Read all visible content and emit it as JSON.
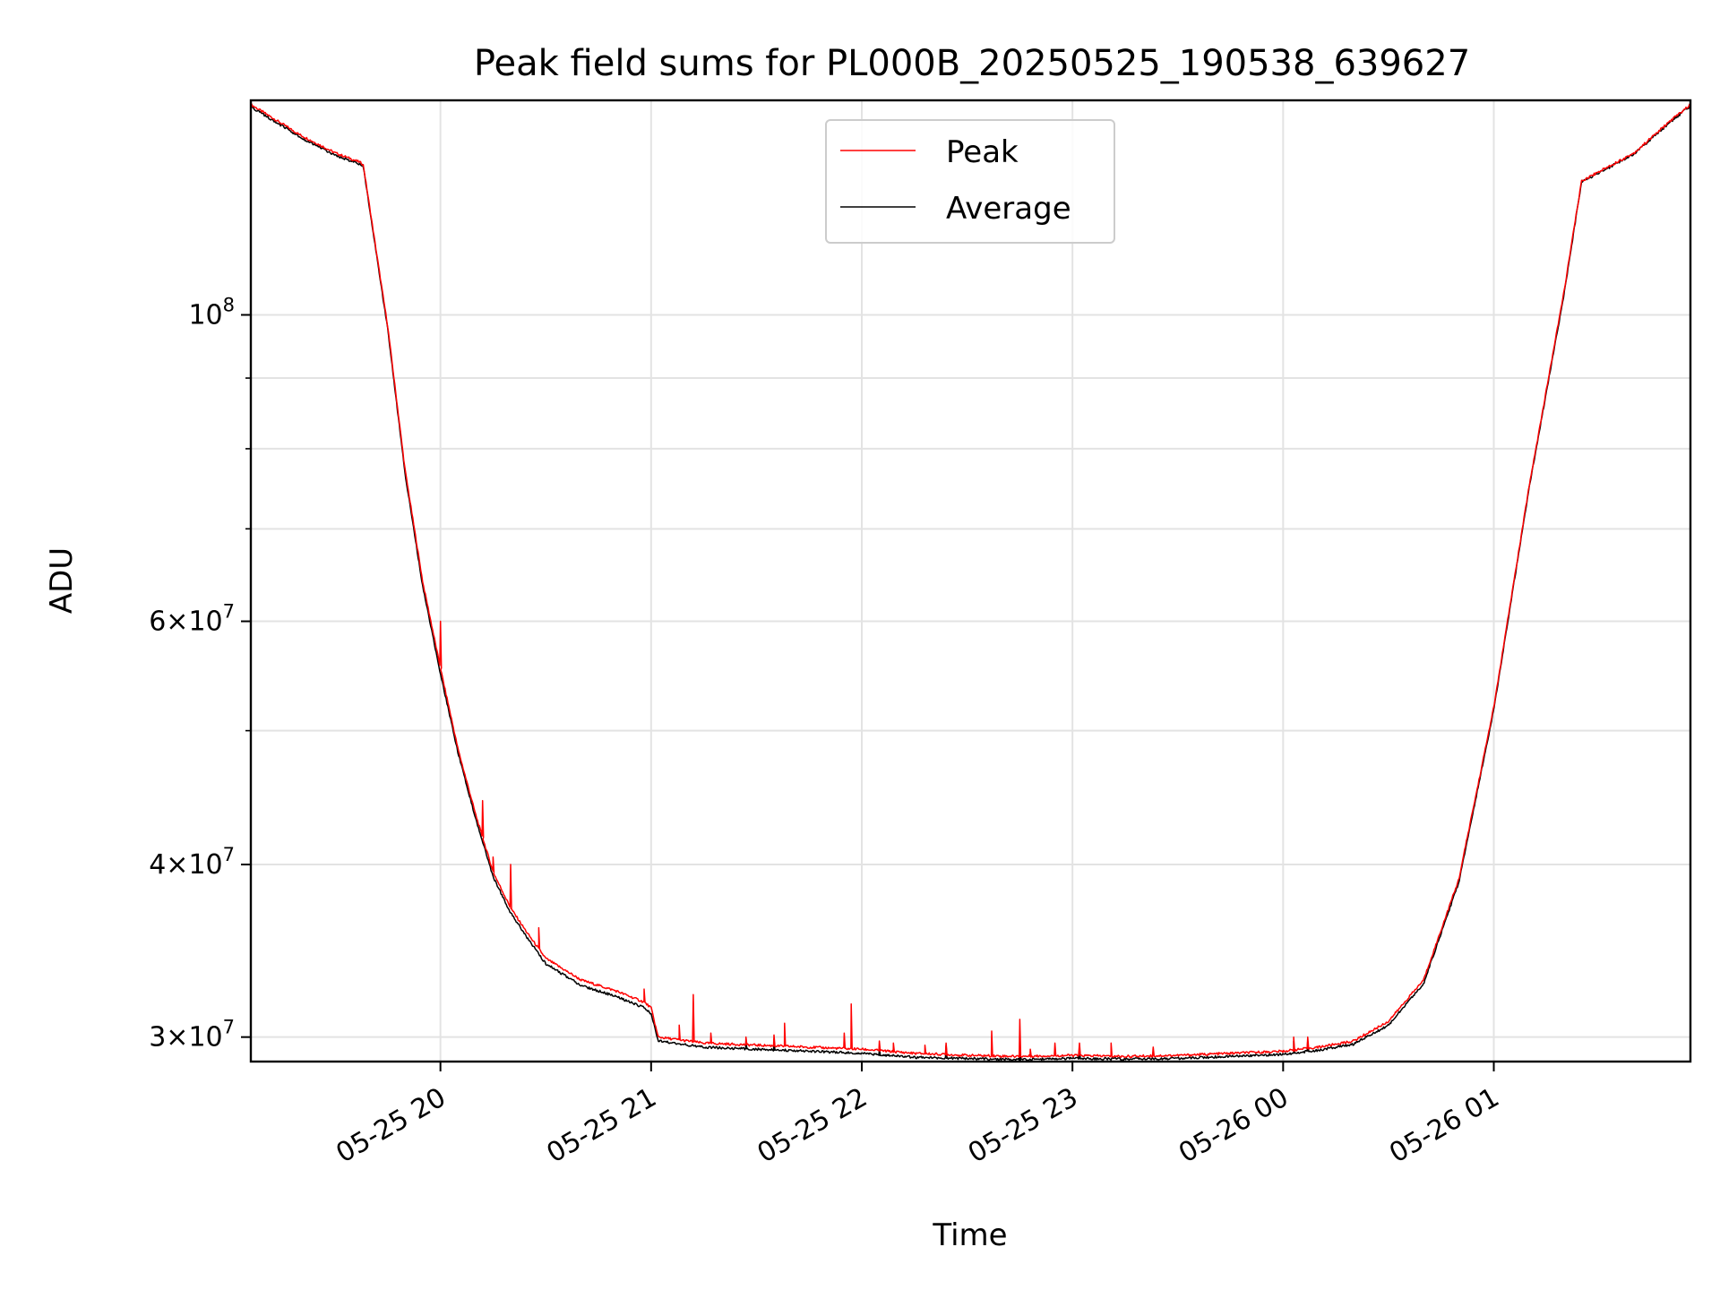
{
  "chart_data": {
    "type": "line",
    "title": "Peak field sums for PL000B_20250525_190538_639627",
    "xlabel": "Time",
    "ylabel": "ADU",
    "yscale": "log",
    "grid": true,
    "legend_position": "upper center",
    "xlim": [
      "2025-05-25 19:06",
      "2025-05-26 01:56"
    ],
    "ylim": [
      28800000,
      143000000
    ],
    "x_ticks": [
      {
        "value": "2025-05-25 20:00",
        "label": "05-25 20"
      },
      {
        "value": "2025-05-25 21:00",
        "label": "05-25 21"
      },
      {
        "value": "2025-05-25 22:00",
        "label": "05-25 22"
      },
      {
        "value": "2025-05-25 23:00",
        "label": "05-25 23"
      },
      {
        "value": "2025-05-26 00:00",
        "label": "05-26 00"
      },
      {
        "value": "2025-05-26 01:00",
        "label": "05-26 01"
      }
    ],
    "y_major_ticks": [
      {
        "value": 30000000,
        "mant": "3",
        "exp": "7"
      },
      {
        "value": 40000000,
        "mant": "4",
        "exp": "7"
      },
      {
        "value": 60000000,
        "mant": "6",
        "exp": "7"
      },
      {
        "value": 100000000,
        "mant": "",
        "exp": "8"
      }
    ],
    "y_minor_ticks": [
      50000000,
      70000000,
      80000000,
      90000000
    ],
    "series": [
      {
        "name": "Peak",
        "color": "#ff0000",
        "x": [
          "2025-05-25 19:06",
          "2025-05-25 19:20",
          "2025-05-25 19:30",
          "2025-05-25 19:37",
          "2025-05-25 19:38",
          "2025-05-25 19:45",
          "2025-05-25 19:50",
          "2025-05-25 19:55",
          "2025-05-25 20:00",
          "2025-05-25 20:05",
          "2025-05-25 20:10",
          "2025-05-25 20:15",
          "2025-05-25 20:20",
          "2025-05-25 20:25",
          "2025-05-25 20:30",
          "2025-05-25 20:40",
          "2025-05-25 20:50",
          "2025-05-25 20:58",
          "2025-05-25 21:00",
          "2025-05-25 21:02",
          "2025-05-25 21:15",
          "2025-05-25 21:30",
          "2025-05-25 21:45",
          "2025-05-25 22:00",
          "2025-05-25 22:15",
          "2025-05-25 22:30",
          "2025-05-25 22:45",
          "2025-05-25 23:00",
          "2025-05-25 23:15",
          "2025-05-25 23:30",
          "2025-05-25 23:45",
          "2025-05-26 00:00",
          "2025-05-26 00:10",
          "2025-05-26 00:20",
          "2025-05-26 00:30",
          "2025-05-26 00:40",
          "2025-05-26 00:50",
          "2025-05-26 01:00",
          "2025-05-26 01:10",
          "2025-05-26 01:20",
          "2025-05-26 01:25",
          "2025-05-26 01:30",
          "2025-05-26 01:40",
          "2025-05-26 01:50",
          "2025-05-26 01:56"
        ],
        "y": [
          142000000,
          135000000,
          131000000,
          129000000,
          128500000,
          98000000,
          77000000,
          64000000,
          55500000,
          48500000,
          43500000,
          39500000,
          37200000,
          35600000,
          34200000,
          33000000,
          32400000,
          31800000,
          31500000,
          30000000,
          29700000,
          29600000,
          29500000,
          29400000,
          29200000,
          29100000,
          29050000,
          29100000,
          29050000,
          29100000,
          29200000,
          29300000,
          29500000,
          29800000,
          30800000,
          33000000,
          39000000,
          52000000,
          75000000,
          104000000,
          125000000,
          127000000,
          131000000,
          138000000,
          142000000
        ],
        "spikes": [
          {
            "x": "2025-05-25 20:00",
            "y": 60000000
          },
          {
            "x": "2025-05-25 20:12",
            "y": 44500000
          },
          {
            "x": "2025-05-25 20:15",
            "y": 40500000
          },
          {
            "x": "2025-05-25 20:20",
            "y": 40000000
          },
          {
            "x": "2025-05-25 20:28",
            "y": 36000000
          },
          {
            "x": "2025-05-25 20:58",
            "y": 32500000
          },
          {
            "x": "2025-05-25 21:08",
            "y": 30600000
          },
          {
            "x": "2025-05-25 21:12",
            "y": 32200000
          },
          {
            "x": "2025-05-25 21:17",
            "y": 30200000
          },
          {
            "x": "2025-05-25 21:27",
            "y": 30000000
          },
          {
            "x": "2025-05-25 21:35",
            "y": 30100000
          },
          {
            "x": "2025-05-25 21:38",
            "y": 30700000
          },
          {
            "x": "2025-05-25 21:55",
            "y": 30200000
          },
          {
            "x": "2025-05-25 21:57",
            "y": 31700000
          },
          {
            "x": "2025-05-25 22:05",
            "y": 29800000
          },
          {
            "x": "2025-05-25 22:09",
            "y": 29700000
          },
          {
            "x": "2025-05-25 22:18",
            "y": 29600000
          },
          {
            "x": "2025-05-25 22:24",
            "y": 29700000
          },
          {
            "x": "2025-05-25 22:37",
            "y": 30300000
          },
          {
            "x": "2025-05-25 22:45",
            "y": 30900000
          },
          {
            "x": "2025-05-25 22:48",
            "y": 29400000
          },
          {
            "x": "2025-05-25 22:55",
            "y": 29700000
          },
          {
            "x": "2025-05-25 23:02",
            "y": 29700000
          },
          {
            "x": "2025-05-25 23:11",
            "y": 29700000
          },
          {
            "x": "2025-05-25 23:23",
            "y": 29500000
          },
          {
            "x": "2025-05-26 00:03",
            "y": 30000000
          },
          {
            "x": "2025-05-26 00:07",
            "y": 30000000
          }
        ]
      },
      {
        "name": "Average",
        "color": "#000000",
        "x": [
          "2025-05-25 19:06",
          "2025-05-25 19:20",
          "2025-05-25 19:30",
          "2025-05-25 19:37",
          "2025-05-25 19:38",
          "2025-05-25 19:45",
          "2025-05-25 19:50",
          "2025-05-25 19:55",
          "2025-05-25 20:00",
          "2025-05-25 20:05",
          "2025-05-25 20:10",
          "2025-05-25 20:15",
          "2025-05-25 20:20",
          "2025-05-25 20:25",
          "2025-05-25 20:30",
          "2025-05-25 20:40",
          "2025-05-25 20:50",
          "2025-05-25 20:58",
          "2025-05-25 21:00",
          "2025-05-25 21:02",
          "2025-05-25 21:15",
          "2025-05-25 21:30",
          "2025-05-25 21:45",
          "2025-05-25 22:00",
          "2025-05-25 22:15",
          "2025-05-25 22:30",
          "2025-05-25 22:45",
          "2025-05-25 23:00",
          "2025-05-25 23:15",
          "2025-05-25 23:30",
          "2025-05-25 23:45",
          "2025-05-26 00:00",
          "2025-05-26 00:10",
          "2025-05-26 00:20",
          "2025-05-26 00:30",
          "2025-05-26 00:40",
          "2025-05-26 00:50",
          "2025-05-26 01:00",
          "2025-05-26 01:10",
          "2025-05-26 01:20",
          "2025-05-26 01:25",
          "2025-05-26 01:30",
          "2025-05-26 01:40",
          "2025-05-26 01:50",
          "2025-05-26 01:56"
        ],
        "y": [
          141500000,
          134500000,
          130500000,
          128600000,
          128200000,
          97500000,
          76500000,
          63500000,
          55000000,
          48200000,
          43200000,
          39200000,
          36900000,
          35300000,
          33900000,
          32700000,
          32100000,
          31500000,
          31200000,
          29800000,
          29500000,
          29400000,
          29300000,
          29200000,
          29000000,
          28950000,
          28900000,
          28950000,
          28920000,
          28950000,
          29050000,
          29150000,
          29350000,
          29650000,
          30600000,
          32800000,
          38800000,
          51800000,
          74800000,
          103500000,
          124800000,
          126700000,
          130800000,
          137700000,
          141700000
        ],
        "spikes": [
          {
            "x": "2025-05-25 21:27",
            "y": 29800000
          },
          {
            "x": "2025-05-25 21:35",
            "y": 29900000
          },
          {
            "x": "2025-05-25 22:05",
            "y": 29500000
          },
          {
            "x": "2025-05-25 22:24",
            "y": 29600000
          },
          {
            "x": "2025-05-25 22:45",
            "y": 29400000
          },
          {
            "x": "2025-05-25 23:02",
            "y": 29500000
          },
          {
            "x": "2025-05-26 00:03",
            "y": 29800000
          },
          {
            "x": "2025-05-26 00:07",
            "y": 29800000
          }
        ]
      }
    ]
  }
}
